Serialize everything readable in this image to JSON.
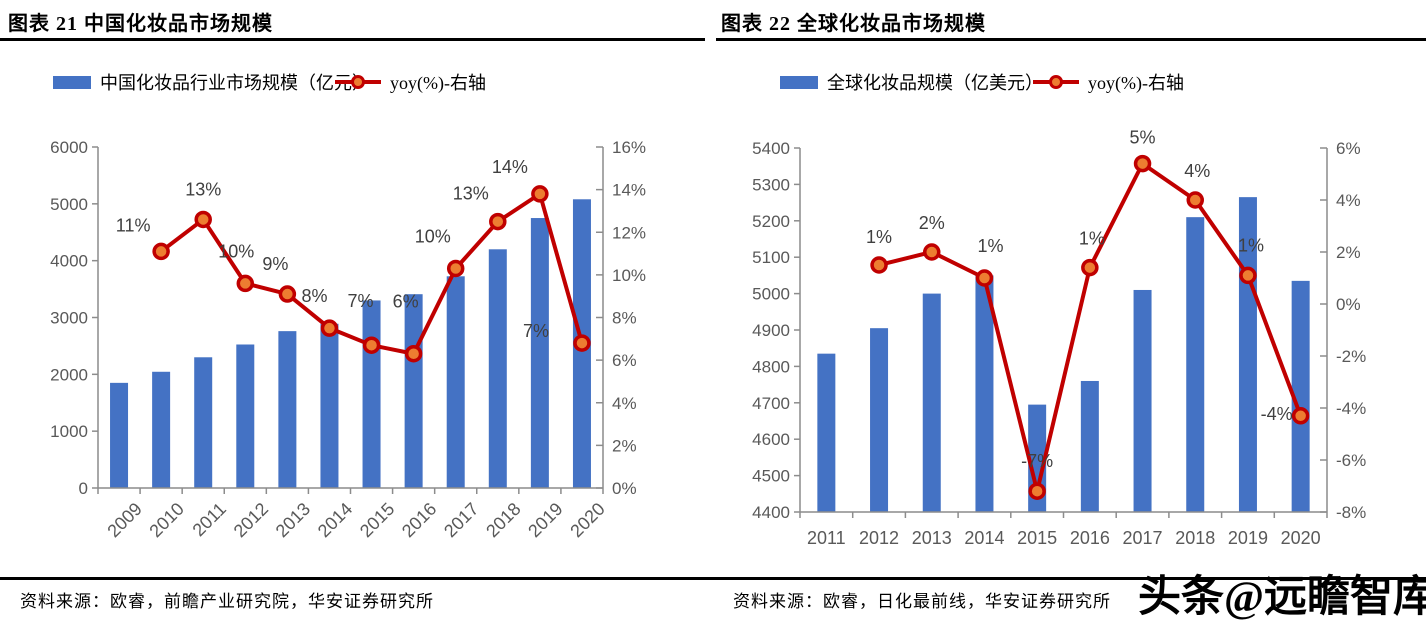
{
  "watermark": "头条@远瞻智库",
  "colors": {
    "bar": "#4472C4",
    "line": "#C00000",
    "marker_fill": "#ED7D31",
    "axis_text": "#595959",
    "label_text": "#404040",
    "axis_line": "#8C8C8C",
    "rule": "#000000"
  },
  "panels": [
    {
      "title": "图表 21 中国化妆品市场规模",
      "legend": {
        "bar": "中国化妆品行业市场规模（亿元）",
        "line": "yoy(%)-右轴"
      },
      "source": "资料来源：欧睿，前瞻产业研究院，华安证券研究所"
    },
    {
      "title": "图表 22 全球化妆品市场规模",
      "legend": {
        "bar": "全球化妆品规模（亿美元）",
        "line": "yoy(%)-右轴"
      },
      "source": "资料来源：欧睿，日化最前线，华安证券研究所"
    }
  ],
  "chart_data": [
    {
      "type": "bar+line",
      "title": "图表 21 中国化妆品市场规模",
      "categories": [
        "2009",
        "2010",
        "2011",
        "2012",
        "2013",
        "2014",
        "2015",
        "2016",
        "2017",
        "2018",
        "2019",
        "2020"
      ],
      "series": [
        {
          "name": "中国化妆品行业市场规模（亿元）",
          "kind": "bar",
          "axis": "left",
          "values": [
            1850,
            2045,
            2300,
            2525,
            2760,
            2890,
            3300,
            3410,
            3725,
            4200,
            4750,
            5080
          ]
        },
        {
          "name": "yoy(%)-右轴",
          "kind": "line",
          "axis": "right",
          "values": [
            null,
            11.1,
            12.6,
            9.6,
            9.1,
            7.5,
            6.7,
            6.3,
            10.3,
            12.5,
            13.8,
            6.8
          ],
          "labels": [
            null,
            "11%",
            "13%",
            "10%",
            "9%",
            "8%",
            "7%",
            "6%",
            "10%",
            "13%",
            "14%",
            "7%"
          ]
        }
      ],
      "left_axis": {
        "min": 0,
        "max": 6000,
        "step": 1000,
        "tick_labels": [
          "0",
          "1000",
          "2000",
          "3000",
          "4000",
          "5000",
          "6000"
        ]
      },
      "right_axis": {
        "min": 0,
        "max": 16,
        "step": 2,
        "format": "percent",
        "tick_labels": [
          "0%",
          "2%",
          "4%",
          "6%",
          "8%",
          "10%",
          "12%",
          "14%",
          "16%"
        ]
      },
      "grid": false,
      "legend_position": "top"
    },
    {
      "type": "bar+line",
      "title": "图表 22 全球化妆品市场规模",
      "categories": [
        "2011",
        "2012",
        "2013",
        "2014",
        "2015",
        "2016",
        "2017",
        "2018",
        "2019",
        "2020"
      ],
      "series": [
        {
          "name": "全球化妆品规模（亿美元）",
          "kind": "bar",
          "axis": "left",
          "values": [
            4835,
            4905,
            5000,
            5050,
            4695,
            4760,
            5010,
            5210,
            5265,
            5035
          ]
        },
        {
          "name": "yoy(%)-右轴",
          "kind": "line",
          "axis": "right",
          "values": [
            null,
            1.5,
            2.0,
            1.0,
            -7.2,
            1.4,
            5.4,
            4.0,
            1.1,
            -4.3
          ],
          "labels": [
            null,
            "1%",
            "2%",
            "1%",
            "-7%",
            "1%",
            "5%",
            "4%",
            "1%",
            "-4%"
          ]
        }
      ],
      "left_axis": {
        "min": 4400,
        "max": 5400,
        "step": 100,
        "tick_labels": [
          "4400",
          "4500",
          "4600",
          "4700",
          "4800",
          "4900",
          "5000",
          "5100",
          "5200",
          "5300",
          "5400"
        ]
      },
      "right_axis": {
        "min": -8,
        "max": 6,
        "step": 2,
        "format": "percent",
        "tick_labels": [
          "-8%",
          "-6%",
          "-4%",
          "-2%",
          "0%",
          "2%",
          "4%",
          "6%"
        ]
      },
      "grid": false,
      "legend_position": "top"
    }
  ]
}
